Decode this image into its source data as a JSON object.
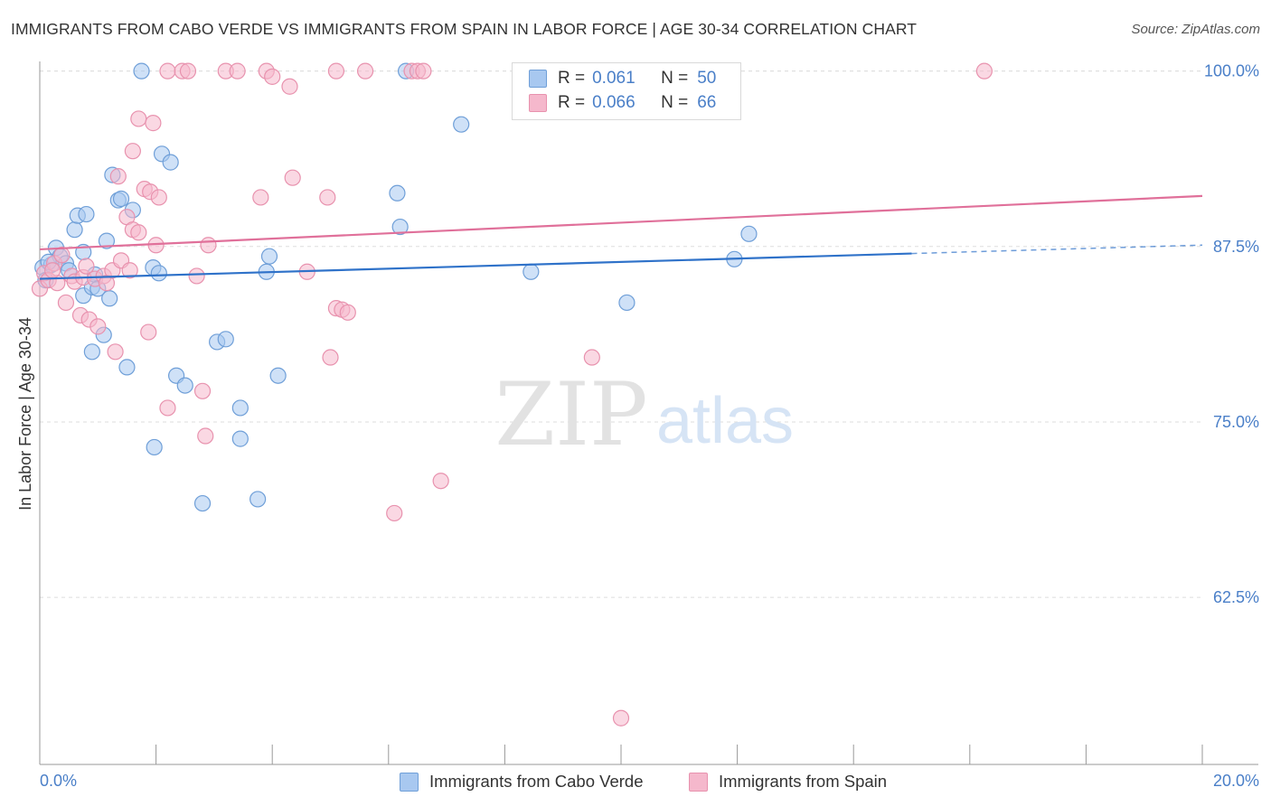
{
  "title": "IMMIGRANTS FROM CABO VERDE VS IMMIGRANTS FROM SPAIN IN LABOR FORCE | AGE 30-34 CORRELATION CHART",
  "source": "Source: ZipAtlas.com",
  "watermark": {
    "zip": "ZIP",
    "atlas": "atlas"
  },
  "legend": {
    "series1": {
      "r_label": "R =",
      "r_value": "0.061",
      "n_label": "N =",
      "n_value": "50"
    },
    "series2": {
      "r_label": "R =",
      "r_value": "0.066",
      "n_label": "N =",
      "n_value": "66"
    }
  },
  "colors": {
    "series1_fill": "#a8c8f0",
    "series1_stroke": "#6f9fd8",
    "series1_line": "#2f72c9",
    "series2_fill": "#f5b8cc",
    "series2_stroke": "#e892ae",
    "series2_line": "#e0709a",
    "tick_label": "#4a7fc8",
    "grid": "#dedede"
  },
  "chart_data": {
    "type": "scatter",
    "title": "IMMIGRANTS FROM CABO VERDE VS IMMIGRANTS FROM SPAIN IN LABOR FORCE | AGE 30-34 CORRELATION CHART",
    "xlabel": "",
    "ylabel": "In Labor Force | Age 30-34",
    "xlim": [
      0,
      20
    ],
    "ylim": [
      50.6,
      101.2
    ],
    "x_tick_labels": [
      "0.0%",
      "20.0%"
    ],
    "y_ticks": [
      62.5,
      75.0,
      87.5,
      100.0
    ],
    "y_tick_labels": [
      "62.5%",
      "75.0%",
      "87.5%",
      "100.0%"
    ],
    "grid": true,
    "legend_position": "top-center",
    "series": [
      {
        "name": "Immigrants from Cabo Verde",
        "R": 0.061,
        "N": 50,
        "trend": {
          "x": [
            0,
            15.0
          ],
          "y": [
            85.2,
            87.0
          ],
          "dashed_to": [
            20.0,
            87.6
          ]
        },
        "points": [
          [
            0.05,
            86.0
          ],
          [
            0.1,
            85.1
          ],
          [
            0.2,
            86.2
          ],
          [
            0.28,
            87.4
          ],
          [
            0.35,
            86.8
          ],
          [
            0.45,
            86.3
          ],
          [
            0.5,
            85.8
          ],
          [
            0.6,
            88.7
          ],
          [
            0.65,
            89.7
          ],
          [
            0.75,
            87.1
          ],
          [
            0.8,
            89.8
          ],
          [
            0.75,
            84.0
          ],
          [
            0.9,
            84.6
          ],
          [
            0.9,
            80.0
          ],
          [
            0.95,
            85.5
          ],
          [
            1.0,
            84.5
          ],
          [
            1.1,
            81.2
          ],
          [
            1.15,
            87.9
          ],
          [
            1.2,
            83.8
          ],
          [
            1.25,
            92.6
          ],
          [
            1.35,
            90.8
          ],
          [
            1.4,
            90.9
          ],
          [
            1.5,
            78.9
          ],
          [
            1.6,
            90.1
          ],
          [
            1.75,
            100.0
          ],
          [
            1.95,
            86.0
          ],
          [
            1.97,
            73.2
          ],
          [
            2.05,
            85.6
          ],
          [
            2.1,
            94.1
          ],
          [
            2.25,
            93.5
          ],
          [
            2.35,
            78.3
          ],
          [
            2.5,
            77.6
          ],
          [
            2.8,
            69.2
          ],
          [
            3.05,
            80.7
          ],
          [
            3.2,
            80.9
          ],
          [
            3.45,
            73.8
          ],
          [
            3.45,
            76.0
          ],
          [
            3.75,
            69.5
          ],
          [
            3.9,
            85.7
          ],
          [
            3.95,
            86.8
          ],
          [
            4.1,
            78.3
          ],
          [
            6.15,
            91.3
          ],
          [
            6.2,
            88.9
          ],
          [
            6.3,
            100.0
          ],
          [
            7.25,
            96.2
          ],
          [
            8.45,
            85.7
          ],
          [
            10.1,
            83.5
          ],
          [
            11.95,
            86.6
          ],
          [
            12.2,
            88.4
          ],
          [
            0.15,
            86.4
          ]
        ]
      },
      {
        "name": "Immigrants from Spain",
        "R": 0.066,
        "N": 66,
        "trend": {
          "x": [
            0,
            20.0
          ],
          "y": [
            87.3,
            91.1
          ]
        },
        "points": [
          [
            0.0,
            84.5
          ],
          [
            0.08,
            85.6
          ],
          [
            0.15,
            85.1
          ],
          [
            0.25,
            86.3
          ],
          [
            0.3,
            84.9
          ],
          [
            0.38,
            86.9
          ],
          [
            0.45,
            83.5
          ],
          [
            0.55,
            85.4
          ],
          [
            0.6,
            85.0
          ],
          [
            0.7,
            82.6
          ],
          [
            0.75,
            85.3
          ],
          [
            0.8,
            86.1
          ],
          [
            0.85,
            82.3
          ],
          [
            0.95,
            85.2
          ],
          [
            1.0,
            81.8
          ],
          [
            1.1,
            85.4
          ],
          [
            1.15,
            84.9
          ],
          [
            1.25,
            85.8
          ],
          [
            1.3,
            80.0
          ],
          [
            1.35,
            92.5
          ],
          [
            1.4,
            86.5
          ],
          [
            1.5,
            89.6
          ],
          [
            1.55,
            85.8
          ],
          [
            1.6,
            88.7
          ],
          [
            1.6,
            94.3
          ],
          [
            1.7,
            88.5
          ],
          [
            1.7,
            96.6
          ],
          [
            1.8,
            91.6
          ],
          [
            1.87,
            81.4
          ],
          [
            1.9,
            91.4
          ],
          [
            1.95,
            96.3
          ],
          [
            2.0,
            87.6
          ],
          [
            2.05,
            91.0
          ],
          [
            2.2,
            76.0
          ],
          [
            2.2,
            100.0
          ],
          [
            2.45,
            100.0
          ],
          [
            2.55,
            100.0
          ],
          [
            2.7,
            85.4
          ],
          [
            2.8,
            77.2
          ],
          [
            2.85,
            74.0
          ],
          [
            2.9,
            87.6
          ],
          [
            3.2,
            100.0
          ],
          [
            3.4,
            100.0
          ],
          [
            3.8,
            91.0
          ],
          [
            3.9,
            100.0
          ],
          [
            4.0,
            99.6
          ],
          [
            4.3,
            98.9
          ],
          [
            4.35,
            92.4
          ],
          [
            4.6,
            85.7
          ],
          [
            4.95,
            91.0
          ],
          [
            5.0,
            79.6
          ],
          [
            5.1,
            83.1
          ],
          [
            5.2,
            83.0
          ],
          [
            5.3,
            82.8
          ],
          [
            5.1,
            100.0
          ],
          [
            5.6,
            100.0
          ],
          [
            6.4,
            100.0
          ],
          [
            6.5,
            100.0
          ],
          [
            6.6,
            100.0
          ],
          [
            6.9,
            70.8
          ],
          [
            6.1,
            68.5
          ],
          [
            9.5,
            79.6
          ],
          [
            10.0,
            53.9
          ],
          [
            11.25,
            100.0
          ],
          [
            16.25,
            100.0
          ],
          [
            0.22,
            85.8
          ]
        ]
      }
    ]
  },
  "bottom_legend": {
    "series1": "Immigrants from Cabo Verde",
    "series2": "Immigrants from Spain"
  }
}
